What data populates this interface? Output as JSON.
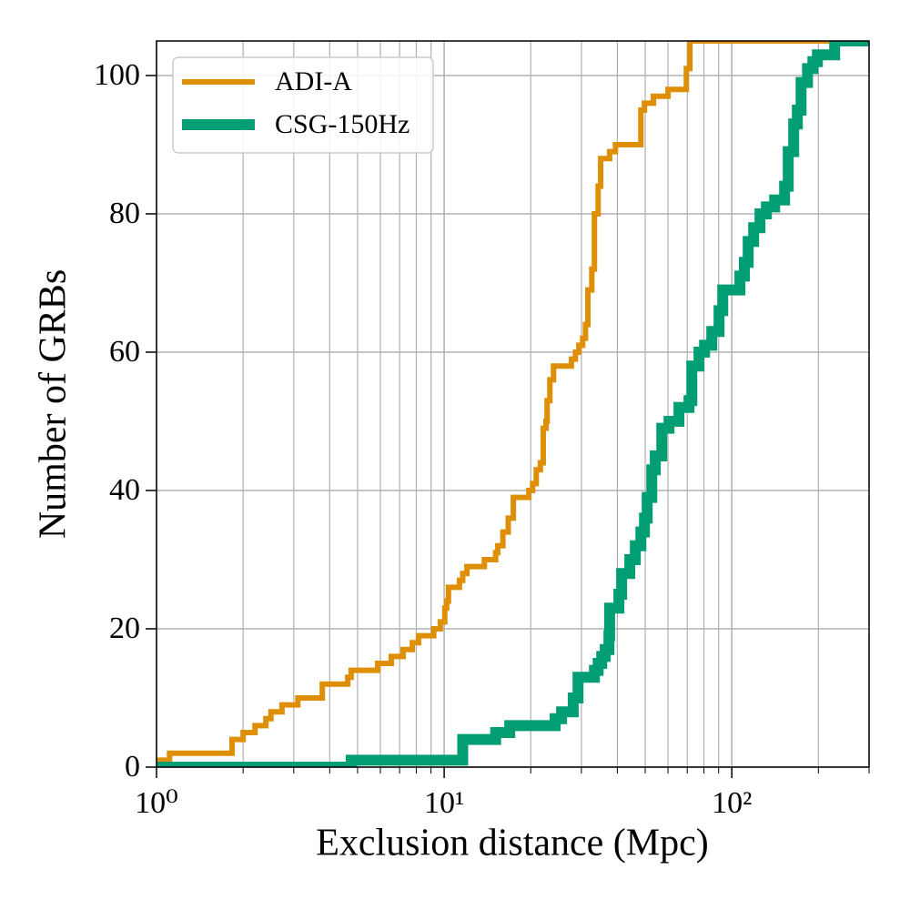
{
  "chart_data": {
    "type": "step",
    "xlabel": "Exclusion distance (Mpc)",
    "ylabel": "Number of GRBs",
    "xscale": "log",
    "xlim": [
      1,
      300
    ],
    "ylim": [
      0,
      105
    ],
    "xticks": [
      {
        "value": 1,
        "label": "10⁰"
      },
      {
        "value": 10,
        "label": "10¹"
      },
      {
        "value": 100,
        "label": "10²"
      }
    ],
    "xminorticks": [
      2,
      3,
      4,
      5,
      6,
      7,
      8,
      9,
      20,
      30,
      40,
      50,
      60,
      70,
      80,
      90,
      200,
      300
    ],
    "yticks": [
      0,
      20,
      40,
      60,
      80,
      100
    ],
    "grid": true,
    "legend": "upper left",
    "series": [
      {
        "name": "ADI-A",
        "color": "#de8f05",
        "width": 6,
        "x": [
          1,
          1.11,
          1.83,
          2.0,
          2.2,
          2.4,
          2.5,
          2.73,
          3.1,
          3.77,
          4.62,
          4.75,
          5.87,
          6.55,
          7.2,
          7.75,
          8.15,
          9.2,
          9.7,
          10.05,
          10.2,
          10.35,
          11.3,
          11.6,
          12.0,
          13.8,
          15.1,
          15.35,
          16.0,
          16.7,
          17.4,
          19.7,
          20.3,
          20.9,
          21.6,
          22.1,
          22.6,
          22.8,
          23.3,
          24.0,
          27.7,
          28.6,
          29.4,
          30.3,
          31.0,
          31.6,
          32.6,
          33.3,
          34.3,
          35.0,
          37.6,
          39.4,
          48.3,
          49.7,
          53.4,
          60.0,
          69.5,
          71.5,
          300
        ],
        "values": [
          1,
          2,
          4,
          5,
          6,
          7,
          8,
          9,
          10,
          12,
          13,
          14,
          15,
          16,
          17,
          18,
          19,
          20,
          21,
          23,
          24,
          26,
          27,
          28,
          29,
          30,
          31,
          32,
          34,
          36,
          39,
          40,
          41,
          43,
          44,
          49,
          50,
          53,
          56,
          58,
          59,
          60,
          61,
          62,
          64,
          69,
          72,
          80,
          84,
          88,
          89,
          90,
          95,
          96,
          97,
          98,
          101,
          105,
          105
        ]
      },
      {
        "name": "CSG-150Hz",
        "color": "#029e73",
        "width": 12,
        "x": [
          1,
          4.75,
          11.6,
          15.1,
          16.9,
          24.3,
          25.6,
          28.1,
          29.2,
          33.3,
          34.3,
          35.3,
          36.3,
          37.4,
          37.6,
          40.5,
          41.4,
          44.2,
          46.2,
          48.3,
          49.7,
          50.8,
          52.7,
          54.2,
          57.1,
          60.5,
          65.5,
          71.0,
          72.6,
          76.9,
          80.4,
          85.2,
          90.3,
          93.0,
          106.7,
          110.6,
          114.0,
          119.1,
          125.3,
          131.9,
          140.9,
          152.6,
          157.1,
          164.1,
          169.0,
          174.1,
          183.3,
          191.4,
          198.4,
          227.8,
          300
        ],
        "values": [
          0,
          1,
          4,
          5,
          6,
          7,
          8,
          10,
          13,
          14,
          15,
          16,
          17,
          19,
          23,
          25,
          28,
          30,
          32,
          34,
          36,
          39,
          43,
          45,
          49,
          50,
          52,
          53,
          58,
          60,
          61,
          63,
          66,
          69,
          71,
          73,
          76,
          78,
          80,
          81,
          82,
          84,
          89,
          93,
          95,
          99,
          101,
          102,
          103,
          105,
          105
        ]
      }
    ]
  }
}
